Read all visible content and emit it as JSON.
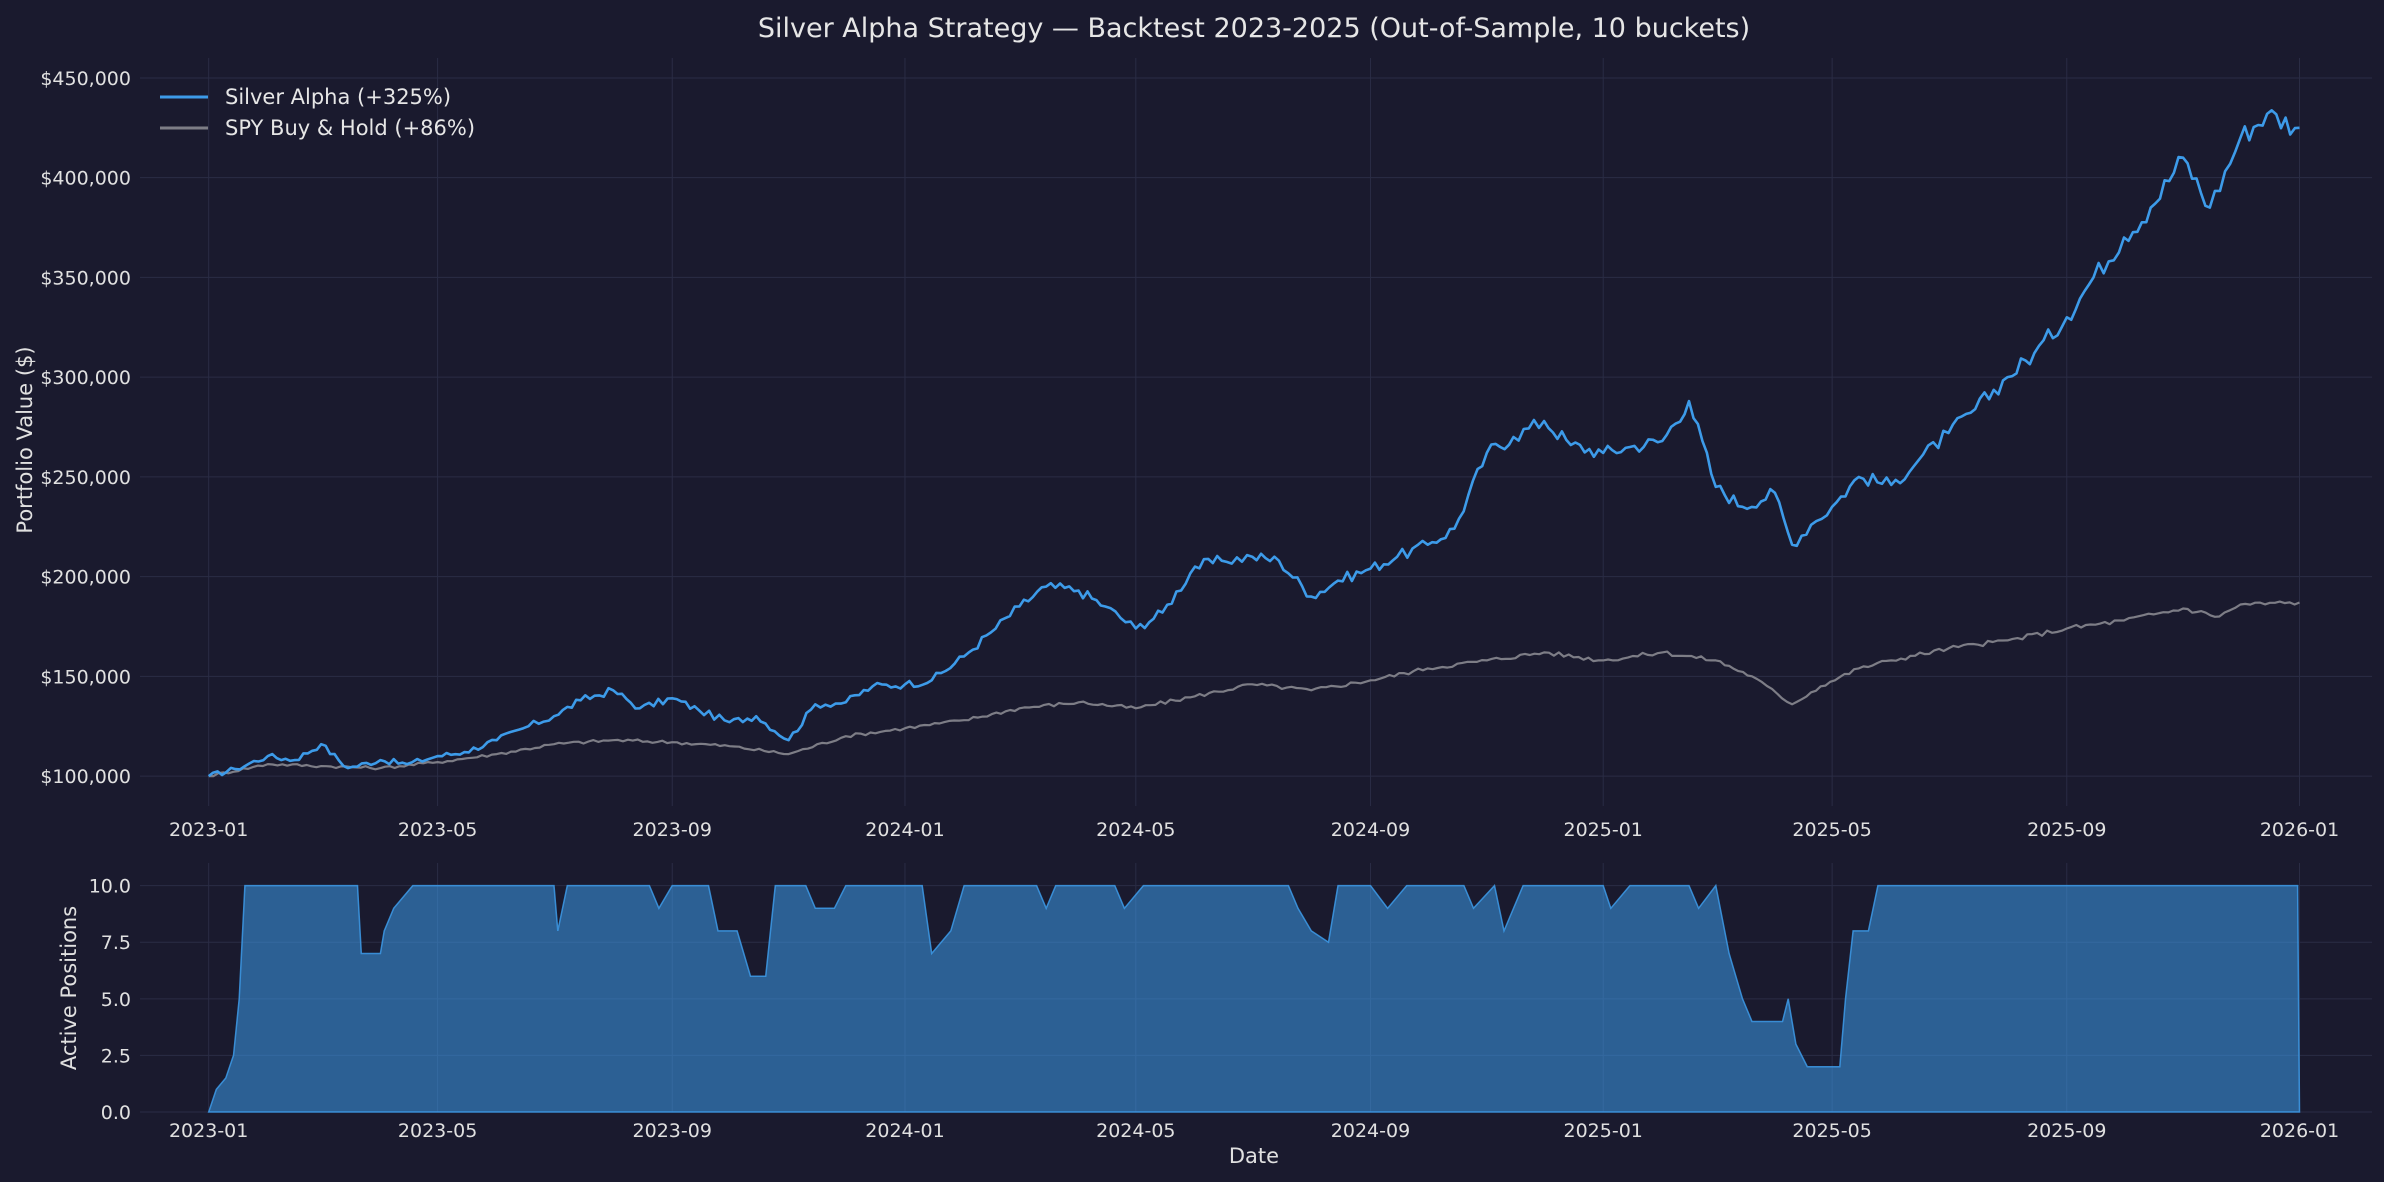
{
  "chart_data": [
    {
      "type": "line",
      "title": "Silver Alpha Strategy — Backtest 2023-2025 (Out-of-Sample, 10 buckets)",
      "xlabel": "",
      "ylabel": "Portfolio Value ($)",
      "ylim": [
        85000,
        460000
      ],
      "xlim": [
        "2022-11-26",
        "2026-02-08"
      ],
      "grid": true,
      "legend_position": "top-left",
      "x_ticks": [
        "2023-01",
        "2023-05",
        "2023-09",
        "2024-01",
        "2024-05",
        "2024-09",
        "2025-01",
        "2025-05",
        "2025-09",
        "2026-01"
      ],
      "y_ticks": [
        100000,
        150000,
        200000,
        250000,
        300000,
        350000,
        400000,
        450000
      ],
      "y_tick_labels": [
        "$100,000",
        "$150,000",
        "$200,000",
        "$250,000",
        "$300,000",
        "$350,000",
        "$400,000",
        "$450,000"
      ],
      "series": [
        {
          "name": "Silver Alpha (+325%)",
          "color": "#3d9be9",
          "points": [
            [
              "2023-01-01",
              100000
            ],
            [
              "2023-01-15",
              103500
            ],
            [
              "2023-02-01",
              110000
            ],
            [
              "2023-02-15",
              108000
            ],
            [
              "2023-03-01",
              116000
            ],
            [
              "2023-03-15",
              104000
            ],
            [
              "2023-04-01",
              108000
            ],
            [
              "2023-04-15",
              106000
            ],
            [
              "2023-05-01",
              110000
            ],
            [
              "2023-05-15",
              112000
            ],
            [
              "2023-06-01",
              118000
            ],
            [
              "2023-06-15",
              124000
            ],
            [
              "2023-07-01",
              130000
            ],
            [
              "2023-07-15",
              138000
            ],
            [
              "2023-08-01",
              143000
            ],
            [
              "2023-08-15",
              134000
            ],
            [
              "2023-09-01",
              139000
            ],
            [
              "2023-09-15",
              133000
            ],
            [
              "2023-10-01",
              127000
            ],
            [
              "2023-10-15",
              130000
            ],
            [
              "2023-11-01",
              118000
            ],
            [
              "2023-11-15",
              136000
            ],
            [
              "2023-12-01",
              137000
            ],
            [
              "2023-12-15",
              145000
            ],
            [
              "2024-01-01",
              146000
            ],
            [
              "2024-01-15",
              148000
            ],
            [
              "2024-02-01",
              160000
            ],
            [
              "2024-02-15",
              172000
            ],
            [
              "2024-03-01",
              185000
            ],
            [
              "2024-03-15",
              195000
            ],
            [
              "2024-04-01",
              193000
            ],
            [
              "2024-04-15",
              185000
            ],
            [
              "2024-05-01",
              174000
            ],
            [
              "2024-05-15",
              182000
            ],
            [
              "2024-06-01",
              205000
            ],
            [
              "2024-06-15",
              208000
            ],
            [
              "2024-07-01",
              210000
            ],
            [
              "2024-07-15",
              208000
            ],
            [
              "2024-08-01",
              190000
            ],
            [
              "2024-08-15",
              198000
            ],
            [
              "2024-09-01",
              204000
            ],
            [
              "2024-09-15",
              210000
            ],
            [
              "2024-10-01",
              216000
            ],
            [
              "2024-10-15",
              224000
            ],
            [
              "2024-11-01",
              262000
            ],
            [
              "2024-11-15",
              270000
            ],
            [
              "2024-12-01",
              278000
            ],
            [
              "2024-12-15",
              266000
            ],
            [
              "2025-01-01",
              262000
            ],
            [
              "2025-01-15",
              265000
            ],
            [
              "2025-02-01",
              268000
            ],
            [
              "2025-02-15",
              288000
            ],
            [
              "2025-03-01",
              245000
            ],
            [
              "2025-03-15",
              235000
            ],
            [
              "2025-04-01",
              242000
            ],
            [
              "2025-04-10",
              216000
            ],
            [
              "2025-04-20",
              226000
            ],
            [
              "2025-05-01",
              235000
            ],
            [
              "2025-05-15",
              250000
            ],
            [
              "2025-06-01",
              246000
            ],
            [
              "2025-06-15",
              258000
            ],
            [
              "2025-07-01",
              272000
            ],
            [
              "2025-07-15",
              284000
            ],
            [
              "2025-08-01",
              300000
            ],
            [
              "2025-08-15",
              312000
            ],
            [
              "2025-09-01",
              330000
            ],
            [
              "2025-09-15",
              350000
            ],
            [
              "2025-10-01",
              370000
            ],
            [
              "2025-10-15",
              385000
            ],
            [
              "2025-11-01",
              410000
            ],
            [
              "2025-11-15",
              385000
            ],
            [
              "2025-12-01",
              420000
            ],
            [
              "2025-12-15",
              432000
            ],
            [
              "2026-01-01",
              425000
            ]
          ]
        },
        {
          "name": "SPY Buy & Hold (+86%)",
          "color": "#7d7d86",
          "points": [
            [
              "2023-01-01",
              100000
            ],
            [
              "2023-02-01",
              106000
            ],
            [
              "2023-03-01",
              105000
            ],
            [
              "2023-04-01",
              104000
            ],
            [
              "2023-05-01",
              107000
            ],
            [
              "2023-06-01",
              111000
            ],
            [
              "2023-07-01",
              116000
            ],
            [
              "2023-08-01",
              118000
            ],
            [
              "2023-09-01",
              117000
            ],
            [
              "2023-10-01",
              115000
            ],
            [
              "2023-11-01",
              111000
            ],
            [
              "2023-12-01",
              120000
            ],
            [
              "2024-01-01",
              124000
            ],
            [
              "2024-02-01",
              128000
            ],
            [
              "2024-03-01",
              134000
            ],
            [
              "2024-04-01",
              137000
            ],
            [
              "2024-05-01",
              134000
            ],
            [
              "2024-06-01",
              140000
            ],
            [
              "2024-07-01",
              146000
            ],
            [
              "2024-08-01",
              143000
            ],
            [
              "2024-09-01",
              148000
            ],
            [
              "2024-10-01",
              154000
            ],
            [
              "2024-11-01",
              158000
            ],
            [
              "2024-12-01",
              162000
            ],
            [
              "2025-01-01",
              158000
            ],
            [
              "2025-02-01",
              162000
            ],
            [
              "2025-03-01",
              158000
            ],
            [
              "2025-03-20",
              150000
            ],
            [
              "2025-04-10",
              136000
            ],
            [
              "2025-04-25",
              145000
            ],
            [
              "2025-05-15",
              154000
            ],
            [
              "2025-06-01",
              158000
            ],
            [
              "2025-07-01",
              164000
            ],
            [
              "2025-08-01",
              168000
            ],
            [
              "2025-09-01",
              174000
            ],
            [
              "2025-10-01",
              178000
            ],
            [
              "2025-11-01",
              184000
            ],
            [
              "2025-11-20",
              180000
            ],
            [
              "2025-12-01",
              186000
            ],
            [
              "2026-01-01",
              187000
            ]
          ]
        }
      ]
    },
    {
      "type": "area",
      "xlabel": "Date",
      "ylabel": "Active Positions",
      "ylim": [
        0,
        11
      ],
      "grid": true,
      "y_ticks": [
        0,
        2.5,
        5,
        7.5,
        10
      ],
      "y_tick_labels": [
        "0.0",
        "2.5",
        "5.0",
        "7.5",
        "10.0"
      ],
      "x_ticks": [
        "2023-01",
        "2023-05",
        "2023-09",
        "2024-01",
        "2024-05",
        "2024-09",
        "2025-01",
        "2025-05",
        "2025-09",
        "2026-01"
      ],
      "series": [
        {
          "color": "#3d9be9",
          "points": [
            [
              "2023-01-01",
              0
            ],
            [
              "2023-01-05",
              1
            ],
            [
              "2023-01-10",
              1.5
            ],
            [
              "2023-01-14",
              2.5
            ],
            [
              "2023-01-17",
              5
            ],
            [
              "2023-01-20",
              10
            ],
            [
              "2023-03-20",
              10
            ],
            [
              "2023-03-22",
              7
            ],
            [
              "2023-04-01",
              7
            ],
            [
              "2023-04-03",
              8
            ],
            [
              "2023-04-08",
              9
            ],
            [
              "2023-04-18",
              10
            ],
            [
              "2023-07-01",
              10
            ],
            [
              "2023-07-03",
              8
            ],
            [
              "2023-07-08",
              10
            ],
            [
              "2023-08-20",
              10
            ],
            [
              "2023-08-25",
              9
            ],
            [
              "2023-09-01",
              10
            ],
            [
              "2023-09-20",
              10
            ],
            [
              "2023-09-25",
              8
            ],
            [
              "2023-10-05",
              8
            ],
            [
              "2023-10-12",
              6
            ],
            [
              "2023-10-20",
              6
            ],
            [
              "2023-10-25",
              10
            ],
            [
              "2023-11-10",
              10
            ],
            [
              "2023-11-15",
              9
            ],
            [
              "2023-11-25",
              9
            ],
            [
              "2023-12-01",
              10
            ],
            [
              "2024-01-10",
              10
            ],
            [
              "2024-01-15",
              7
            ],
            [
              "2024-01-25",
              8
            ],
            [
              "2024-02-01",
              10
            ],
            [
              "2024-03-10",
              10
            ],
            [
              "2024-03-15",
              9
            ],
            [
              "2024-03-20",
              10
            ],
            [
              "2024-04-20",
              10
            ],
            [
              "2024-04-25",
              9
            ],
            [
              "2024-05-05",
              10
            ],
            [
              "2024-07-20",
              10
            ],
            [
              "2024-07-25",
              9
            ],
            [
              "2024-08-01",
              8
            ],
            [
              "2024-08-10",
              7.5
            ],
            [
              "2024-08-15",
              10
            ],
            [
              "2024-09-01",
              10
            ],
            [
              "2024-09-10",
              9
            ],
            [
              "2024-09-20",
              10
            ],
            [
              "2024-10-20",
              10
            ],
            [
              "2024-10-25",
              9
            ],
            [
              "2024-11-05",
              10
            ],
            [
              "2024-11-10",
              8
            ],
            [
              "2024-11-20",
              10
            ],
            [
              "2025-01-01",
              10
            ],
            [
              "2025-01-05",
              9
            ],
            [
              "2025-01-15",
              10
            ],
            [
              "2025-02-15",
              10
            ],
            [
              "2025-02-20",
              9
            ],
            [
              "2025-03-01",
              10
            ],
            [
              "2025-03-08",
              7
            ],
            [
              "2025-03-15",
              5
            ],
            [
              "2025-03-20",
              4
            ],
            [
              "2025-04-05",
              4
            ],
            [
              "2025-04-08",
              5
            ],
            [
              "2025-04-12",
              3
            ],
            [
              "2025-04-18",
              2
            ],
            [
              "2025-05-05",
              2
            ],
            [
              "2025-05-08",
              5
            ],
            [
              "2025-05-12",
              8
            ],
            [
              "2025-05-20",
              8
            ],
            [
              "2025-05-25",
              10
            ],
            [
              "2025-12-31",
              10
            ],
            [
              "2026-01-01",
              0
            ]
          ]
        }
      ]
    }
  ]
}
